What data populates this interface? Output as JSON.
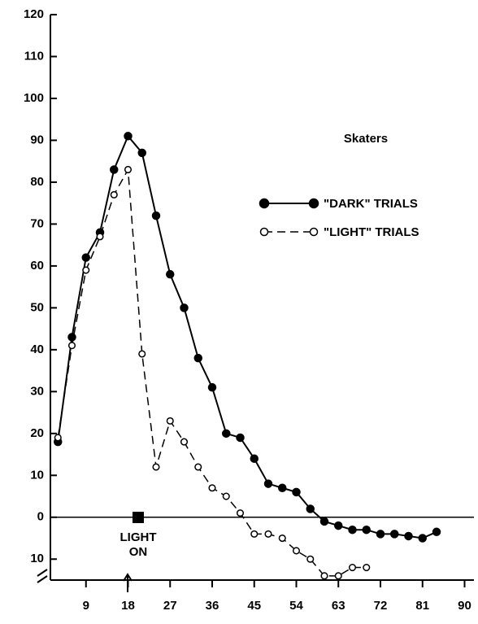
{
  "chart_data": {
    "type": "line",
    "annotation": "Skaters",
    "marker_label": [
      "LIGHT",
      "ON"
    ],
    "x": [
      3,
      6,
      9,
      12,
      15,
      18,
      21,
      24,
      27,
      30,
      33,
      36,
      39,
      42,
      45,
      48,
      51,
      54,
      57,
      60,
      63,
      66,
      69,
      72,
      75,
      78,
      81,
      84
    ],
    "series": [
      {
        "name": "\"DARK\" TRIALS",
        "color": "#000000",
        "line_style": "solid",
        "marker": "filled",
        "values": [
          18,
          43,
          62,
          68,
          83,
          91,
          87,
          72,
          58,
          50,
          38,
          31,
          20,
          19,
          14,
          8,
          7,
          6,
          2,
          -1,
          -2,
          -3,
          -3,
          -4,
          -4,
          -4.5,
          -5,
          -3.5
        ]
      },
      {
        "name": "\"LIGHT\" TRIALS",
        "color": "#000000",
        "line_style": "dashed",
        "marker": "open",
        "values": [
          19,
          41,
          59,
          67,
          77,
          83,
          39,
          12,
          23,
          18,
          12,
          7,
          5,
          1,
          -4,
          -4,
          -5,
          -8,
          -10,
          -14,
          -14,
          -12,
          -12,
          null,
          null,
          null,
          null,
          null
        ]
      }
    ],
    "xlim": [
      0,
      92
    ],
    "xticks": [
      9,
      18,
      27,
      36,
      45,
      54,
      63,
      72,
      81,
      90
    ],
    "ylim": [
      -15,
      120
    ],
    "yticks": [
      {
        "value": -10,
        "label": "10"
      },
      0,
      10,
      20,
      30,
      40,
      50,
      60,
      70,
      80,
      90,
      100,
      110,
      120
    ],
    "zero_line": true
  }
}
